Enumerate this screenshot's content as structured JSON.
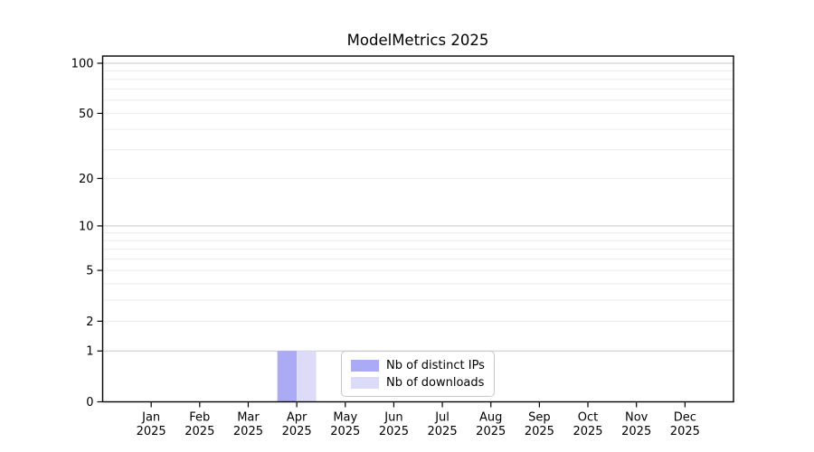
{
  "title": "ModelMetrics 2025",
  "colors": {
    "background": "#ffffff",
    "axis": "#000000",
    "major_grid": "#c9c9c9",
    "minor_grid": "#ececec",
    "tick_text": "#000000",
    "legend_border": "#c9c9c9",
    "distinct_ips_bar": "#aaaaf5",
    "downloads_bar": "#dcdcf8"
  },
  "chart_data": {
    "type": "bar",
    "title": "ModelMetrics 2025",
    "categories": [
      "Jan 2025",
      "Feb 2025",
      "Mar 2025",
      "Apr 2025",
      "May 2025",
      "Jun 2025",
      "Jul 2025",
      "Aug 2025",
      "Sep 2025",
      "Oct 2025",
      "Nov 2025",
      "Dec 2025"
    ],
    "series": [
      {
        "name": "Nb of distinct IPs",
        "color": "#aaaaf5",
        "values": [
          0,
          0,
          0,
          1,
          0,
          0,
          0,
          0,
          0,
          0,
          0,
          0
        ]
      },
      {
        "name": "Nb of downloads",
        "color": "#dcdcf8",
        "values": [
          0,
          0,
          0,
          1,
          0,
          0,
          0,
          0,
          0,
          0,
          0,
          0
        ]
      }
    ],
    "yscale": "log1p",
    "ylim": [
      0,
      110
    ],
    "yticks": [
      0,
      1,
      2,
      5,
      10,
      20,
      50,
      100
    ],
    "major_gridlines": [
      1,
      10,
      100
    ],
    "minor_gridlines": [
      2,
      3,
      4,
      5,
      6,
      7,
      8,
      9,
      20,
      30,
      40,
      50,
      60,
      70,
      80,
      90
    ],
    "grid": true,
    "legend_position": "lower center"
  },
  "legend": {
    "items": [
      {
        "label": "Nb of distinct IPs"
      },
      {
        "label": "Nb of downloads"
      }
    ]
  }
}
